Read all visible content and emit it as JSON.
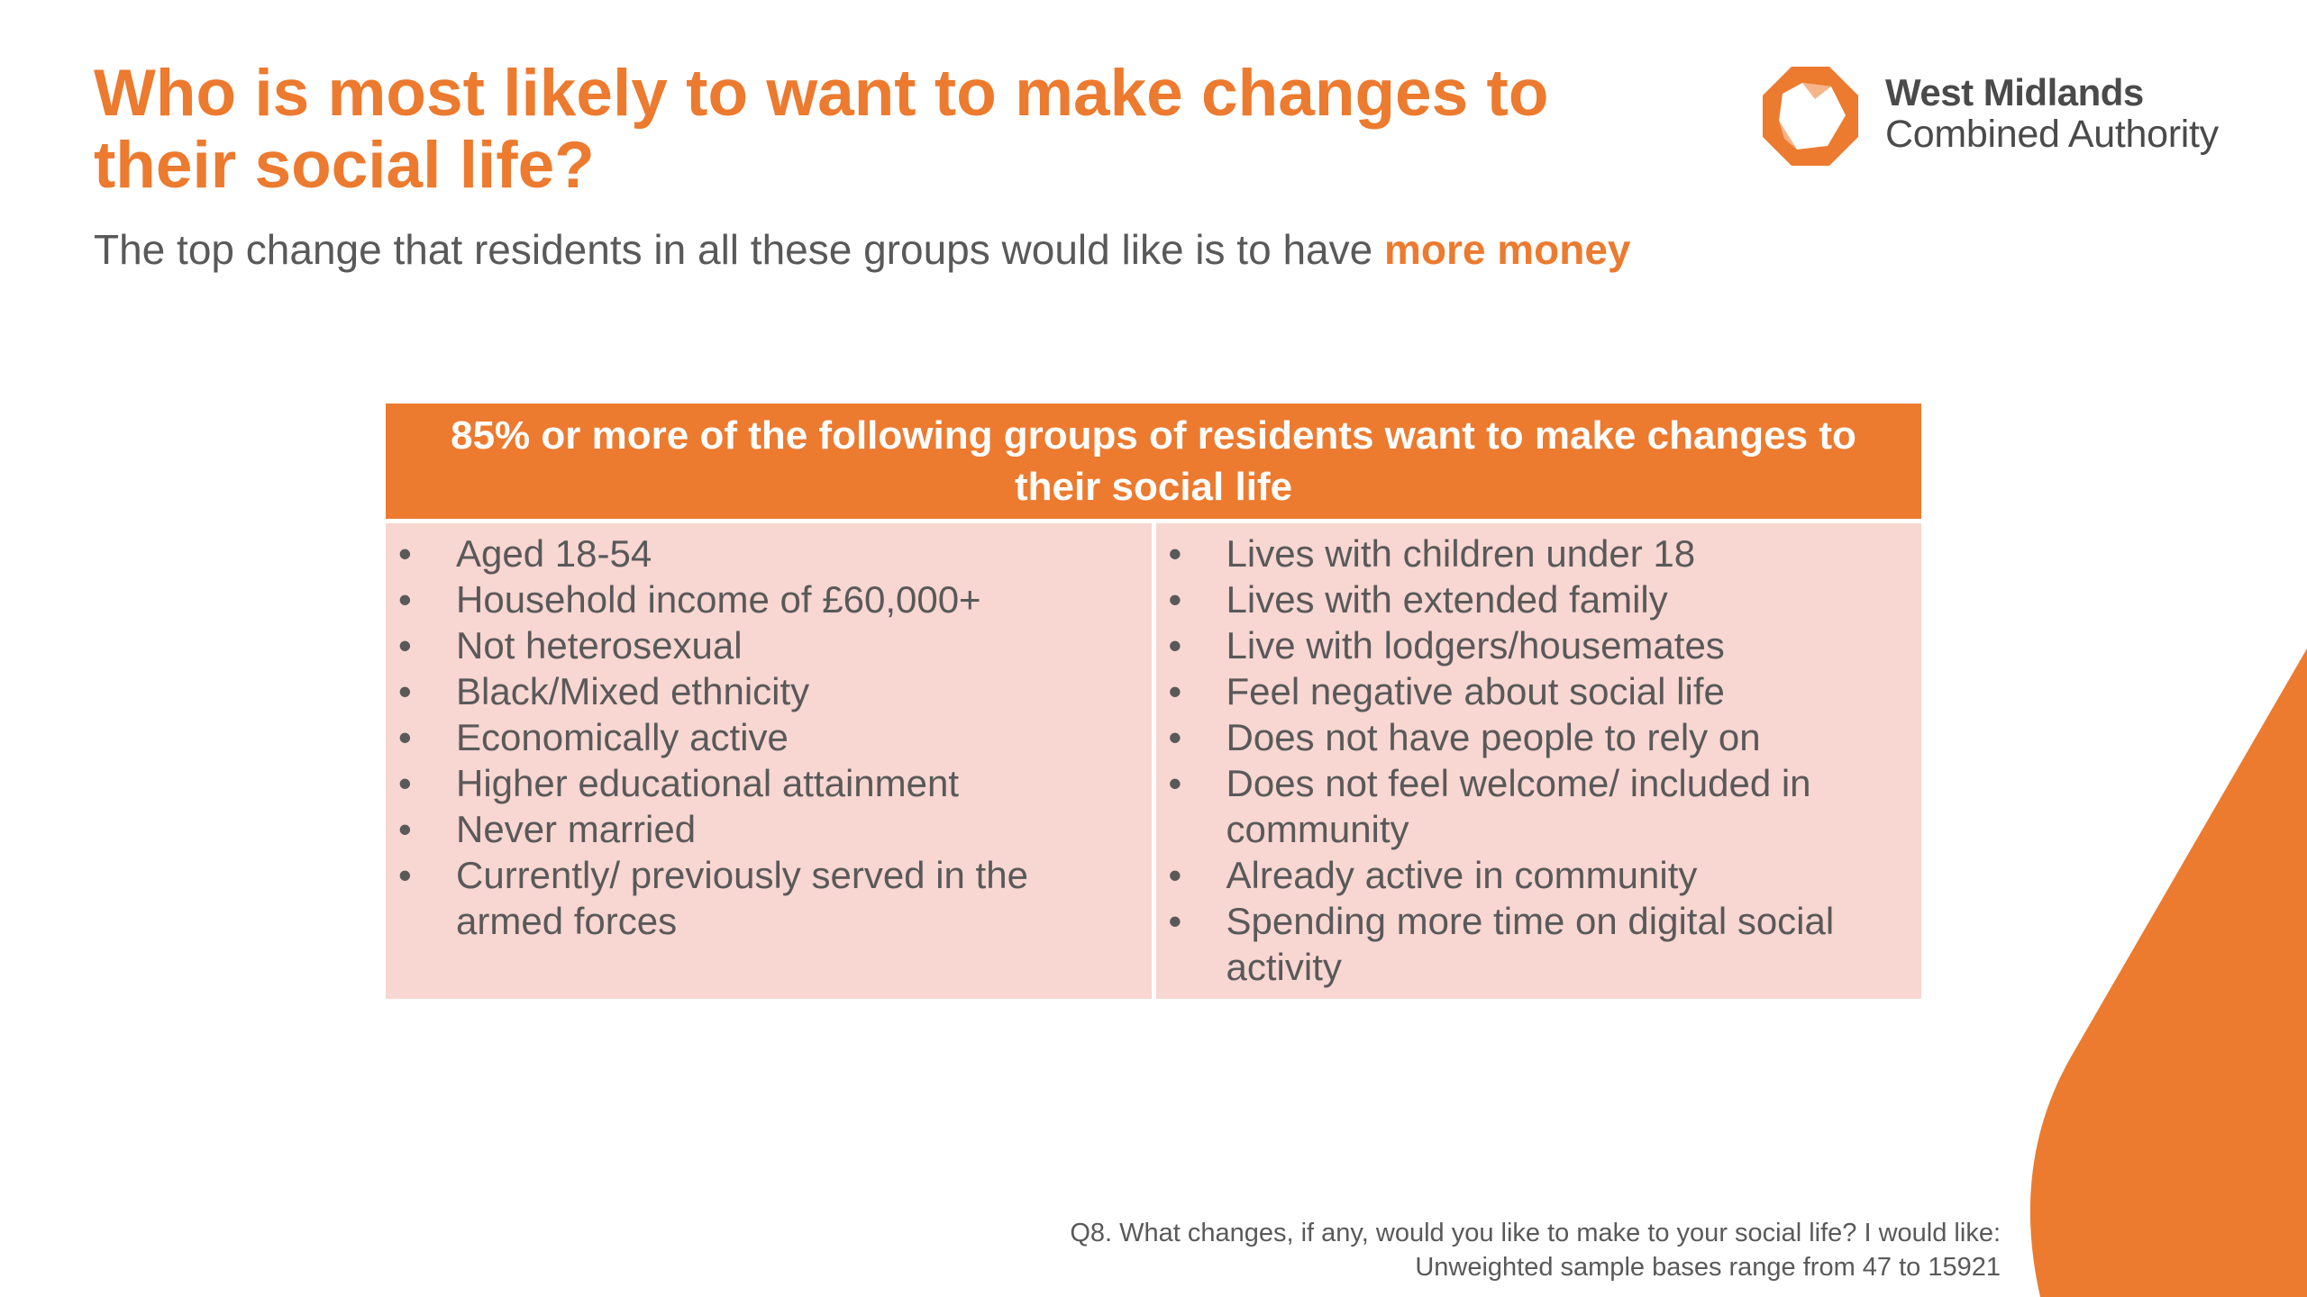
{
  "slide": {
    "title": "Who is most likely to want to make changes to their social life?",
    "subtitle_prefix": "The top change that residents in all these groups would like is to have ",
    "subtitle_highlight": "more money"
  },
  "logo": {
    "line1": "West Midlands",
    "line2": "Combined Authority"
  },
  "panel": {
    "header": "85% or more of the following groups of residents want to make changes to their social life",
    "left_items": [
      "Aged 18-54",
      "Household income of £60,000+",
      "Not heterosexual",
      "Black/Mixed ethnicity",
      "Economically active",
      "Higher educational attainment",
      "Never married",
      "Currently/ previously served in the armed forces"
    ],
    "right_items": [
      "Lives with children under 18",
      "Lives with extended family",
      "Live with lodgers/housemates",
      "Feel negative about social life",
      "Does not have people to rely on",
      "Does not feel welcome/ included in community",
      "Already active in community",
      "Spending more time on digital social activity"
    ]
  },
  "footnote": {
    "question": "Q8. What changes, if any, would you like to make to your social life? I would like:",
    "bases": "Unweighted sample bases range from 47 to 15921"
  },
  "colors": {
    "accent": "#ec7a2f",
    "panel_fill": "#f8d6d1",
    "text": "#595959"
  }
}
